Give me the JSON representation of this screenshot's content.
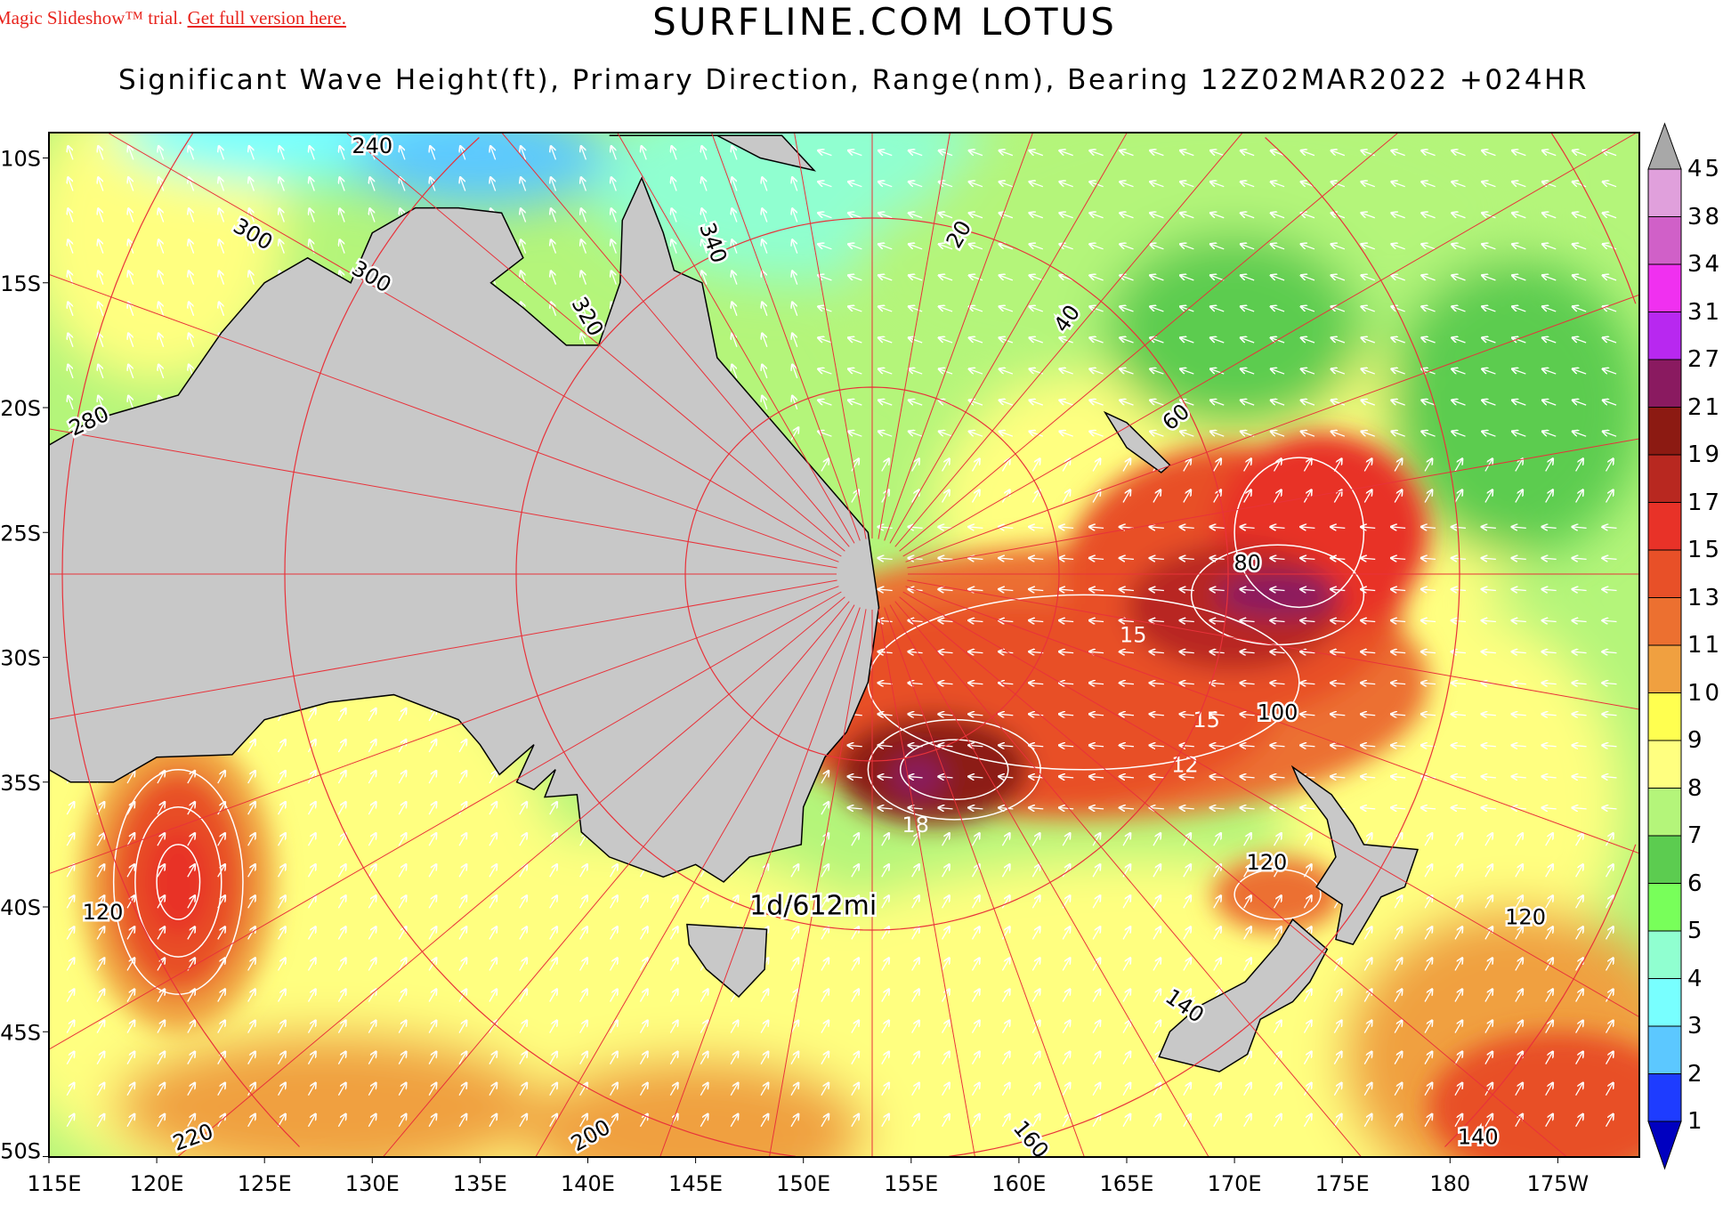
{
  "banner": {
    "prefix": "Magic Slideshow™ trial. ",
    "link": "Get full version here."
  },
  "header": {
    "title": "SURFLINE.COM LOTUS",
    "subtitle": "Significant Wave Height(ft), Primary Direction, Range(nm), Bearing 12Z02MAR2022 +024HR"
  },
  "map": {
    "lon_ticks": [
      "115E",
      "120E",
      "125E",
      "130E",
      "135E",
      "140E",
      "145E",
      "150E",
      "155E",
      "160E",
      "165E",
      "170E",
      "175E",
      "180",
      "175W"
    ],
    "lat_ticks": [
      "10S",
      "15S",
      "20S",
      "25S",
      "30S",
      "35S",
      "40S",
      "45S",
      "50S"
    ],
    "bearing_labels": [
      "280",
      "300",
      "300",
      "320",
      "340",
      "20",
      "40",
      "60",
      "80",
      "100",
      "120",
      "120",
      "140",
      "160",
      "200",
      "220",
      "140",
      "120",
      "240"
    ],
    "range_label": "1d/612mi",
    "contour_labels": [
      "15",
      "18",
      "12",
      "15"
    ],
    "land_color": "#c8c8c8",
    "grid_color": "#e8323a"
  },
  "colorbar": {
    "unit": "ft",
    "labels": [
      "45",
      "38",
      "34",
      "31",
      "27",
      "21",
      "19",
      "17",
      "15",
      "13",
      "11",
      "10",
      "9",
      "8",
      "7",
      "6",
      "5",
      "4",
      "3",
      "2",
      "1"
    ],
    "colors": [
      "#a8a8a8",
      "#e0a0dc",
      "#d060c8",
      "#f030f0",
      "#b828f0",
      "#8a1a60",
      "#8c1a12",
      "#b82820",
      "#e83228",
      "#e85028",
      "#ec7030",
      "#f0a040",
      "#ffff50",
      "#ffff80",
      "#b4f57a",
      "#5ccc50",
      "#78ff5a",
      "#90ffd0",
      "#78ffff",
      "#5cc8ff",
      "#1e3cff",
      "#0000c0"
    ]
  }
}
